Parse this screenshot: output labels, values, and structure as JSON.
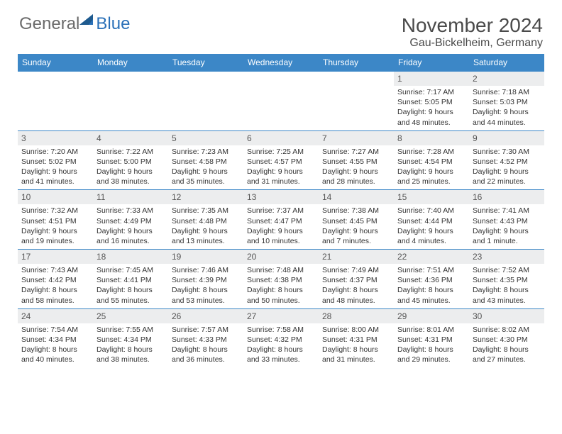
{
  "logo": {
    "text1": "General",
    "text2": "Blue"
  },
  "title": "November 2024",
  "location": "Gau-Bickelheim, Germany",
  "colors": {
    "header_bg": "#3c87c7",
    "header_text": "#ffffff",
    "daynum_bg": "#ecedee",
    "border": "#3c87c7",
    "logo_gray": "#6a6a6a",
    "logo_blue": "#2a70b8"
  },
  "weekdays": [
    "Sunday",
    "Monday",
    "Tuesday",
    "Wednesday",
    "Thursday",
    "Friday",
    "Saturday"
  ],
  "weeks": [
    [
      null,
      null,
      null,
      null,
      null,
      {
        "n": "1",
        "sr": "7:17 AM",
        "ss": "5:05 PM",
        "dl": "9 hours and 48 minutes."
      },
      {
        "n": "2",
        "sr": "7:18 AM",
        "ss": "5:03 PM",
        "dl": "9 hours and 44 minutes."
      }
    ],
    [
      {
        "n": "3",
        "sr": "7:20 AM",
        "ss": "5:02 PM",
        "dl": "9 hours and 41 minutes."
      },
      {
        "n": "4",
        "sr": "7:22 AM",
        "ss": "5:00 PM",
        "dl": "9 hours and 38 minutes."
      },
      {
        "n": "5",
        "sr": "7:23 AM",
        "ss": "4:58 PM",
        "dl": "9 hours and 35 minutes."
      },
      {
        "n": "6",
        "sr": "7:25 AM",
        "ss": "4:57 PM",
        "dl": "9 hours and 31 minutes."
      },
      {
        "n": "7",
        "sr": "7:27 AM",
        "ss": "4:55 PM",
        "dl": "9 hours and 28 minutes."
      },
      {
        "n": "8",
        "sr": "7:28 AM",
        "ss": "4:54 PM",
        "dl": "9 hours and 25 minutes."
      },
      {
        "n": "9",
        "sr": "7:30 AM",
        "ss": "4:52 PM",
        "dl": "9 hours and 22 minutes."
      }
    ],
    [
      {
        "n": "10",
        "sr": "7:32 AM",
        "ss": "4:51 PM",
        "dl": "9 hours and 19 minutes."
      },
      {
        "n": "11",
        "sr": "7:33 AM",
        "ss": "4:49 PM",
        "dl": "9 hours and 16 minutes."
      },
      {
        "n": "12",
        "sr": "7:35 AM",
        "ss": "4:48 PM",
        "dl": "9 hours and 13 minutes."
      },
      {
        "n": "13",
        "sr": "7:37 AM",
        "ss": "4:47 PM",
        "dl": "9 hours and 10 minutes."
      },
      {
        "n": "14",
        "sr": "7:38 AM",
        "ss": "4:45 PM",
        "dl": "9 hours and 7 minutes."
      },
      {
        "n": "15",
        "sr": "7:40 AM",
        "ss": "4:44 PM",
        "dl": "9 hours and 4 minutes."
      },
      {
        "n": "16",
        "sr": "7:41 AM",
        "ss": "4:43 PM",
        "dl": "9 hours and 1 minute."
      }
    ],
    [
      {
        "n": "17",
        "sr": "7:43 AM",
        "ss": "4:42 PM",
        "dl": "8 hours and 58 minutes."
      },
      {
        "n": "18",
        "sr": "7:45 AM",
        "ss": "4:41 PM",
        "dl": "8 hours and 55 minutes."
      },
      {
        "n": "19",
        "sr": "7:46 AM",
        "ss": "4:39 PM",
        "dl": "8 hours and 53 minutes."
      },
      {
        "n": "20",
        "sr": "7:48 AM",
        "ss": "4:38 PM",
        "dl": "8 hours and 50 minutes."
      },
      {
        "n": "21",
        "sr": "7:49 AM",
        "ss": "4:37 PM",
        "dl": "8 hours and 48 minutes."
      },
      {
        "n": "22",
        "sr": "7:51 AM",
        "ss": "4:36 PM",
        "dl": "8 hours and 45 minutes."
      },
      {
        "n": "23",
        "sr": "7:52 AM",
        "ss": "4:35 PM",
        "dl": "8 hours and 43 minutes."
      }
    ],
    [
      {
        "n": "24",
        "sr": "7:54 AM",
        "ss": "4:34 PM",
        "dl": "8 hours and 40 minutes."
      },
      {
        "n": "25",
        "sr": "7:55 AM",
        "ss": "4:34 PM",
        "dl": "8 hours and 38 minutes."
      },
      {
        "n": "26",
        "sr": "7:57 AM",
        "ss": "4:33 PM",
        "dl": "8 hours and 36 minutes."
      },
      {
        "n": "27",
        "sr": "7:58 AM",
        "ss": "4:32 PM",
        "dl": "8 hours and 33 minutes."
      },
      {
        "n": "28",
        "sr": "8:00 AM",
        "ss": "4:31 PM",
        "dl": "8 hours and 31 minutes."
      },
      {
        "n": "29",
        "sr": "8:01 AM",
        "ss": "4:31 PM",
        "dl": "8 hours and 29 minutes."
      },
      {
        "n": "30",
        "sr": "8:02 AM",
        "ss": "4:30 PM",
        "dl": "8 hours and 27 minutes."
      }
    ]
  ],
  "labels": {
    "sunrise": "Sunrise:",
    "sunset": "Sunset:",
    "daylight": "Daylight:"
  }
}
